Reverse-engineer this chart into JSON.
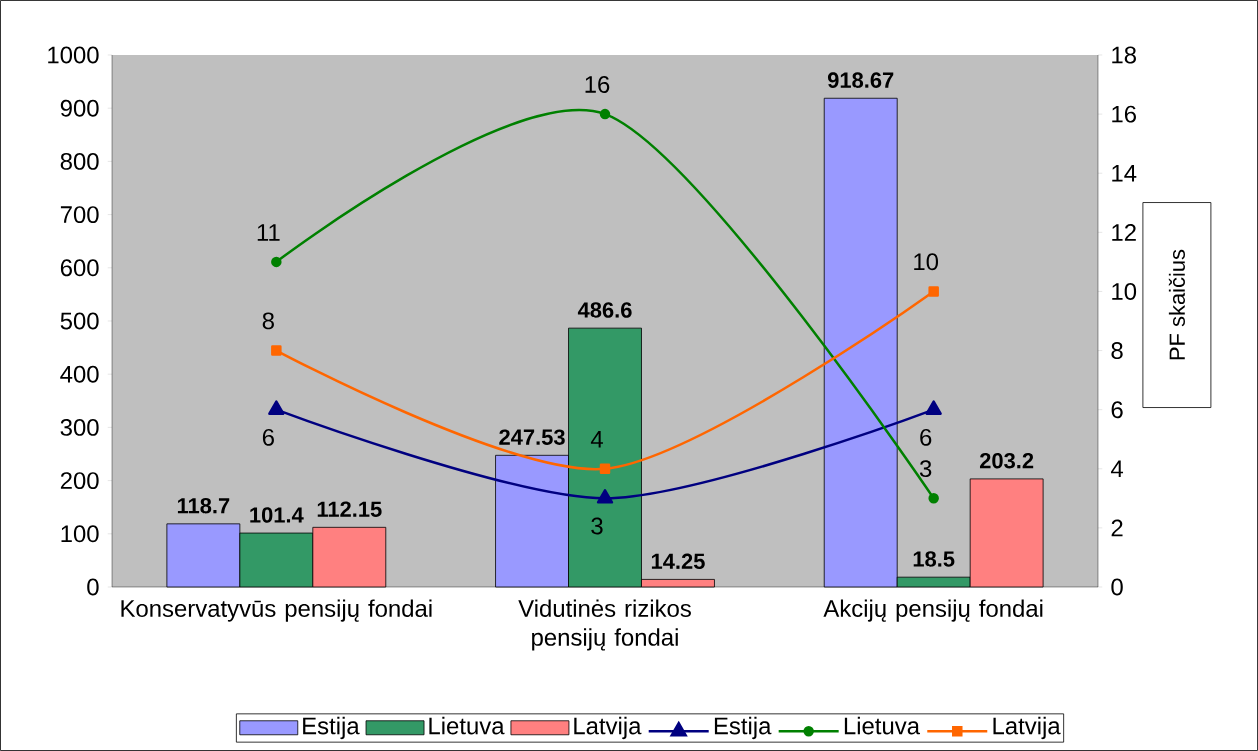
{
  "chart_data": {
    "type": "bar",
    "categories": [
      "Konservatyvūs pensijų fondai",
      "Vidutinės rizikos pensijų fondai",
      "Akcijų pensijų fondai"
    ],
    "ylim": [
      0,
      1000
    ],
    "yticks": [
      0,
      100,
      200,
      300,
      400,
      500,
      600,
      700,
      800,
      900,
      1000
    ],
    "y2lim": [
      0,
      18
    ],
    "y2ticks": [
      0,
      2,
      4,
      6,
      8,
      10,
      12,
      14,
      16,
      18
    ],
    "y2label": "PF skaičius",
    "data_labels": true,
    "legend": "bottom",
    "series": [
      {
        "name": "Estija",
        "color": "#9999ff",
        "values": [
          118.7,
          247.53,
          918.67
        ]
      },
      {
        "name": "Lietuva",
        "color": "#339966",
        "values": [
          101.4,
          486.6,
          18.5
        ]
      },
      {
        "name": "Latvija",
        "color": "#ff8080",
        "values": [
          112.15,
          14.25,
          203.2
        ]
      },
      {
        "name": "Estija",
        "type": "line",
        "axis": "y2",
        "marker": "triangle",
        "color": "#000080",
        "values": [
          6,
          3,
          6
        ]
      },
      {
        "name": "Lietuva",
        "type": "line",
        "axis": "y2",
        "marker": "circle",
        "color": "#008000",
        "values": [
          11,
          16,
          3
        ]
      },
      {
        "name": "Latvija",
        "type": "line",
        "axis": "y2",
        "marker": "square",
        "color": "#ff6600",
        "values": [
          8,
          4,
          10
        ]
      }
    ]
  }
}
